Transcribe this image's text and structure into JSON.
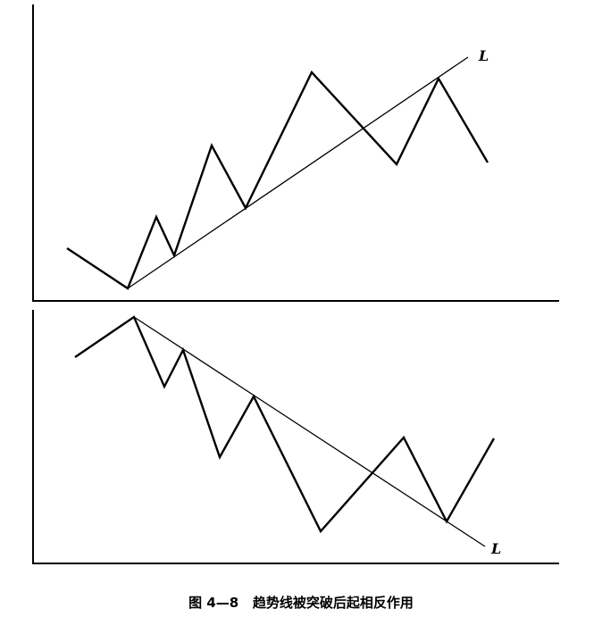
{
  "figure": {
    "caption": "图 4—8   趋势线被突破后起相反作用",
    "upper_panel": {
      "trendline_label": "L"
    },
    "lower_panel": {
      "trendline_label": "L"
    }
  }
}
